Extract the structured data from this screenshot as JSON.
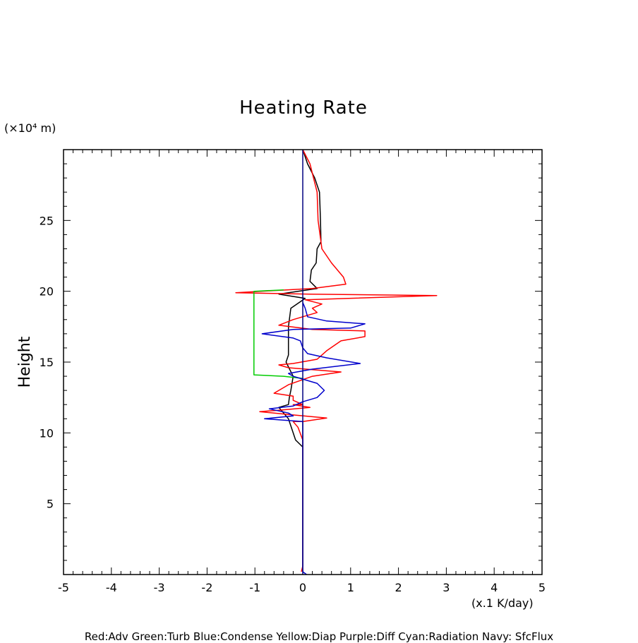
{
  "chart_data": {
    "type": "line",
    "title": "Heating Rate",
    "ylabel": "Height",
    "y_unit": "(×10⁴ m)",
    "x_unit": "(x.1 K/day)",
    "legend_text": "Red:Adv  Green:Turb  Blue:Condense  Yellow:Diap  Purple:Diff  Cyan:Radiation  Navy: SfcFlux",
    "xlim": [
      -5,
      5
    ],
    "ylim": [
      0,
      30
    ],
    "x_major_ticks": [
      -5,
      -4,
      -3,
      -2,
      -1,
      0,
      1,
      2,
      3,
      4,
      5
    ],
    "x_tick_labels": [
      "-5",
      "-4",
      "-3",
      "-2",
      "-1",
      "0",
      "1",
      "2",
      "3",
      "4",
      "5"
    ],
    "y_major_ticks": [
      5,
      10,
      15,
      20,
      25
    ],
    "y_tick_labels": [
      "5",
      "10",
      "15",
      "20",
      "25"
    ],
    "grid": false,
    "series": [
      {
        "color": "#000000",
        "points": [
          [
            0,
            30
          ],
          [
            0.1,
            29
          ],
          [
            0.25,
            28
          ],
          [
            0.35,
            27
          ],
          [
            0.37,
            25
          ],
          [
            0.38,
            23.5
          ],
          [
            0.3,
            23
          ],
          [
            0.28,
            22
          ],
          [
            0.18,
            21.5
          ],
          [
            0.15,
            20.7
          ],
          [
            0.3,
            20.2
          ],
          [
            -0.5,
            19.8
          ],
          [
            0.05,
            19.5
          ],
          [
            -0.25,
            18.8
          ],
          [
            -0.3,
            17.5
          ],
          [
            -0.3,
            15.5
          ],
          [
            -0.35,
            15
          ],
          [
            -0.2,
            14
          ],
          [
            -0.25,
            13
          ],
          [
            -0.28,
            12.5
          ],
          [
            -0.3,
            12
          ],
          [
            -0.5,
            11.8
          ],
          [
            -0.3,
            11
          ],
          [
            -0.2,
            10
          ],
          [
            -0.15,
            9.5
          ],
          [
            0,
            9
          ]
        ]
      },
      {
        "color": "#ff0000",
        "points": [
          [
            0,
            30
          ],
          [
            0.15,
            29
          ],
          [
            0.3,
            27
          ],
          [
            0.32,
            25
          ],
          [
            0.4,
            23
          ],
          [
            0.6,
            22
          ],
          [
            0.85,
            21
          ],
          [
            0.9,
            20.5
          ],
          [
            0.2,
            20.2
          ],
          [
            -1.4,
            19.9
          ],
          [
            0.15,
            19.8
          ],
          [
            2.8,
            19.7
          ],
          [
            0.05,
            19.4
          ],
          [
            0.4,
            19.1
          ],
          [
            0.2,
            18.8
          ],
          [
            0.3,
            18.5
          ],
          [
            -0.2,
            18
          ],
          [
            -0.5,
            17.6
          ],
          [
            0.2,
            17.3
          ],
          [
            1.3,
            17.2
          ],
          [
            1.3,
            16.8
          ],
          [
            0.8,
            16.5
          ],
          [
            0.5,
            15.8
          ],
          [
            0.3,
            15.2
          ],
          [
            -0.2,
            14.9
          ],
          [
            -0.5,
            14.8
          ],
          [
            -0.3,
            14.6
          ],
          [
            0.8,
            14.3
          ],
          [
            0.2,
            14
          ],
          [
            -0.3,
            13.4
          ],
          [
            -0.6,
            12.8
          ],
          [
            -0.2,
            12.6
          ],
          [
            -0.2,
            12.3
          ],
          [
            0,
            12
          ],
          [
            -0.2,
            12
          ],
          [
            0.15,
            11.8
          ],
          [
            -0.5,
            11.6
          ],
          [
            -0.9,
            11.5
          ],
          [
            -0.3,
            11.3
          ],
          [
            0.5,
            11.05
          ],
          [
            0,
            10.8
          ],
          [
            -0.2,
            10.8
          ],
          [
            -0.1,
            10.4
          ],
          [
            0,
            9.5
          ],
          [
            0,
            8.5
          ],
          [
            0,
            0.6
          ],
          [
            -0.03,
            0.2
          ]
        ]
      },
      {
        "color": "#00cc00",
        "points": [
          [
            -0.4,
            20.1
          ],
          [
            -1.02,
            20
          ],
          [
            -1.02,
            14.1
          ],
          [
            -0.4,
            14
          ],
          [
            0,
            13.85
          ],
          [
            0,
            13.6
          ]
        ]
      },
      {
        "color": "#0000cc",
        "points": [
          [
            0,
            19.2
          ],
          [
            0.05,
            18.8
          ],
          [
            0.1,
            18.2
          ],
          [
            0.5,
            17.9
          ],
          [
            1.3,
            17.7
          ],
          [
            1.0,
            17.4
          ],
          [
            -0.2,
            17.3
          ],
          [
            -0.85,
            17
          ],
          [
            -0.2,
            16.7
          ],
          [
            -0.05,
            16.5
          ],
          [
            0,
            16
          ],
          [
            0.1,
            15.6
          ],
          [
            0.5,
            15.3
          ],
          [
            1.2,
            14.9
          ],
          [
            0.2,
            14.5
          ],
          [
            -0.3,
            14.2
          ],
          [
            -0.2,
            14
          ],
          [
            0.3,
            13.5
          ],
          [
            0.45,
            13
          ],
          [
            0.3,
            12.5
          ],
          [
            0,
            12.2
          ],
          [
            -0.2,
            11.9
          ],
          [
            -0.7,
            11.7
          ],
          [
            -0.3,
            11.4
          ],
          [
            -0.2,
            11.2
          ],
          [
            -0.8,
            11
          ],
          [
            0,
            10.8
          ],
          [
            0,
            0.2
          ],
          [
            0.08,
            0
          ]
        ]
      },
      {
        "color": "#000080",
        "points": [
          [
            0,
            0
          ],
          [
            0,
            30
          ]
        ]
      }
    ]
  }
}
